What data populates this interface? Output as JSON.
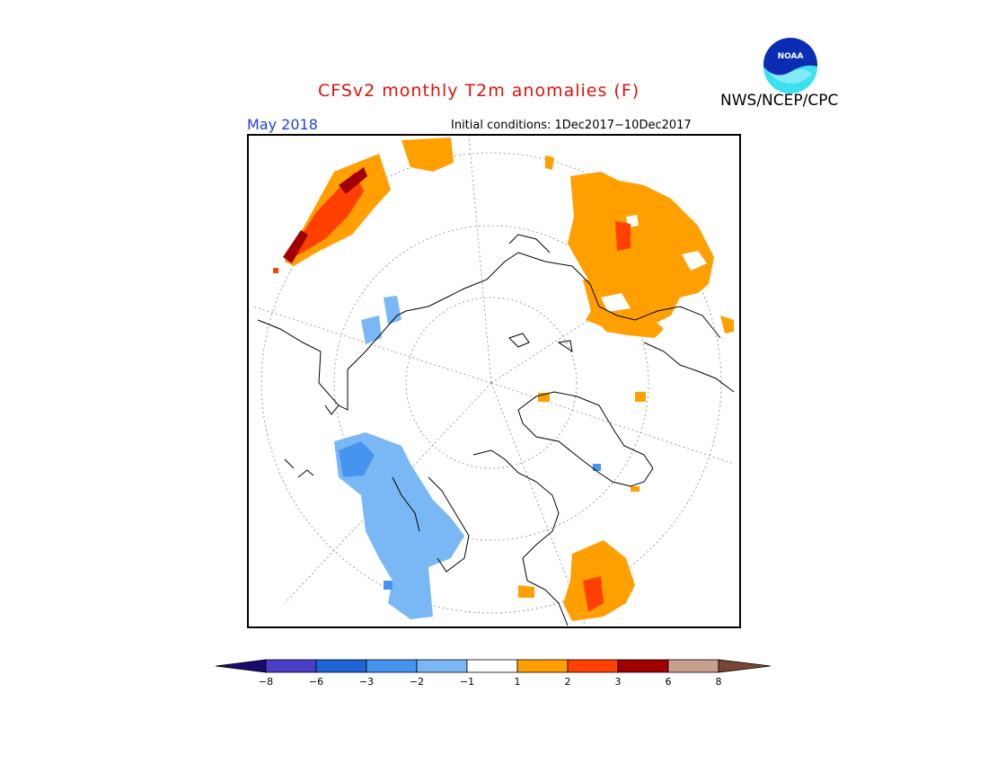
{
  "header": {
    "title": "CFSv2 monthly T2m anomalies (F)",
    "agency": "NWS/NCEP/CPC",
    "logo_text": "NOAA",
    "month": "May 2018",
    "initial_conditions": "Initial conditions: 1Dec2017−10Dec2017"
  },
  "legend": {
    "labels": [
      "−8",
      "−6",
      "−3",
      "−2",
      "−1",
      "1",
      "2",
      "3",
      "6",
      "8"
    ],
    "colors": {
      "below_-8": "#1a0a70",
      "-8_-6": "#4a3ec8",
      "-6_-3": "#1f63d6",
      "-3_-2": "#4595f0",
      "-2_-1": "#79b8f5",
      "-1_1": "#ffffff",
      "1_2": "#ffa000",
      "2_3": "#ff4000",
      "3_6": "#a00000",
      "6_8": "#c8a08c",
      "above_8": "#784632"
    }
  }
}
